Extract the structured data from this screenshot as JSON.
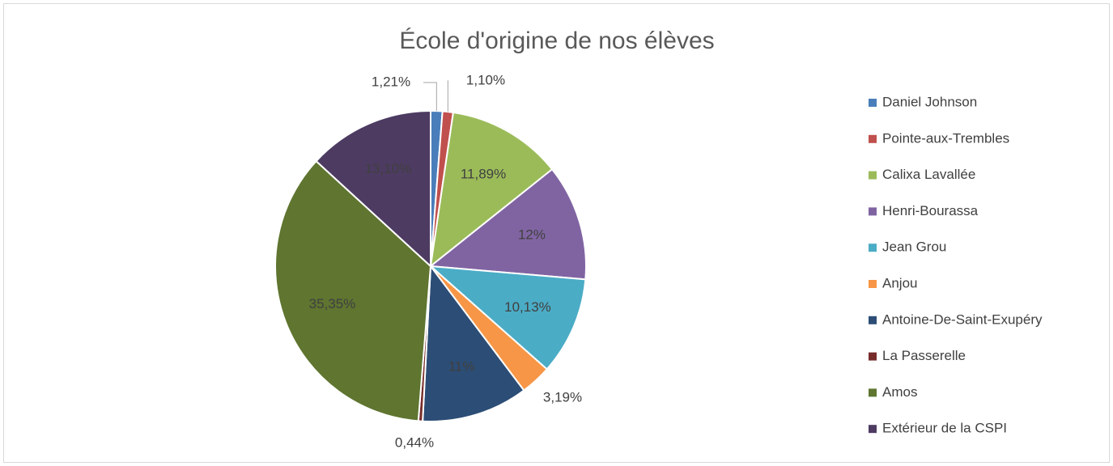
{
  "chart_data": {
    "type": "pie",
    "title": "École d'origine de nos élèves",
    "categories": [
      "Daniel Johnson",
      "Pointe-aux-Trembles",
      "Calixa Lavallée",
      "Henri-Bourassa",
      "Jean Grou",
      "Anjou",
      "Antoine-De-Saint-Exupéry",
      "La Passerelle",
      "Amos",
      "Extérieur de la CSPI"
    ],
    "values": [
      1.21,
      1.1,
      11.89,
      12,
      10.13,
      3.19,
      11,
      0.44,
      35.35,
      13.1
    ],
    "value_labels": [
      "1,21%",
      "1,10%",
      "11,89%",
      "12%",
      "10,13%",
      "3,19%",
      "11%",
      "0,44%",
      "35,35%",
      "13,10%"
    ],
    "colors": [
      "#4a7ebb",
      "#c0504d",
      "#9bbb59",
      "#8064a2",
      "#4bacc6",
      "#f79646",
      "#2c4d75",
      "#772c2a",
      "#5f7530",
      "#4d3b62"
    ],
    "legend": "right"
  }
}
